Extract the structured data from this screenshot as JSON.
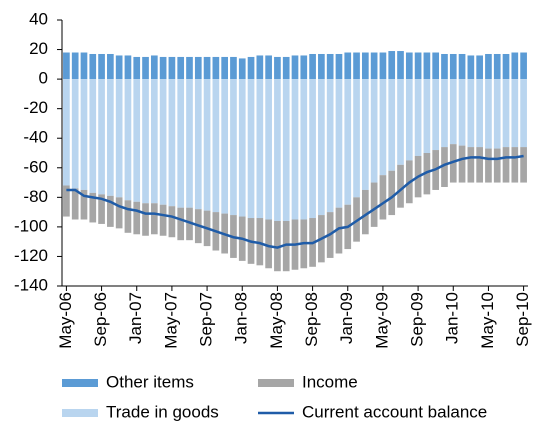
{
  "chart_data": {
    "type": "stacked-bar-line",
    "categories": [
      "May-06",
      null,
      null,
      null,
      "Sep-06",
      null,
      null,
      null,
      "Jan-07",
      null,
      null,
      null,
      "May-07",
      null,
      null,
      null,
      "Sep-07",
      null,
      null,
      null,
      "Jan-08",
      null,
      null,
      null,
      "May-08",
      null,
      null,
      null,
      "Sep-08",
      null,
      null,
      null,
      "Jan-09",
      null,
      null,
      null,
      "May-09",
      null,
      null,
      null,
      "Sep-09",
      null,
      null,
      null,
      "Jan-10",
      null,
      null,
      null,
      "May-10",
      null,
      null,
      null,
      "Sep-10"
    ],
    "series": [
      {
        "name": "Other items",
        "color": "#5b9bd5",
        "kind": "bar",
        "values": [
          18,
          18,
          18,
          17,
          17,
          17,
          16,
          16,
          15,
          15,
          16,
          15,
          15,
          15,
          15,
          15,
          15,
          15,
          15,
          15,
          14,
          15,
          16,
          16,
          15,
          15,
          16,
          16,
          17,
          17,
          17,
          17,
          18,
          18,
          18,
          18,
          18,
          19,
          19,
          18,
          18,
          18,
          18,
          17,
          17,
          17,
          16,
          16,
          17,
          17,
          17,
          18,
          18
        ]
      },
      {
        "name": "Trade in goods",
        "color": "#b9d5ef",
        "kind": "bar",
        "values": [
          -72,
          -74,
          -75,
          -77,
          -78,
          -79,
          -80,
          -82,
          -83,
          -84,
          -84,
          -85,
          -86,
          -87,
          -87,
          -88,
          -89,
          -90,
          -91,
          -92,
          -93,
          -94,
          -94,
          -95,
          -96,
          -96,
          -95,
          -95,
          -94,
          -92,
          -90,
          -87,
          -85,
          -80,
          -75,
          -70,
          -65,
          -62,
          -58,
          -55,
          -52,
          -50,
          -48,
          -46,
          -44,
          -45,
          -46,
          -46,
          -47,
          -47,
          -46,
          -46,
          -46
        ]
      },
      {
        "name": "Income",
        "color": "#a6a6a6",
        "kind": "bar",
        "values": [
          -21,
          -21,
          -20,
          -20,
          -20,
          -21,
          -21,
          -22,
          -22,
          -22,
          -21,
          -21,
          -21,
          -22,
          -22,
          -23,
          -24,
          -26,
          -27,
          -29,
          -30,
          -31,
          -32,
          -33,
          -34,
          -34,
          -34,
          -33,
          -33,
          -32,
          -31,
          -31,
          -30,
          -30,
          -30,
          -30,
          -30,
          -30,
          -29,
          -29,
          -28,
          -28,
          -27,
          -27,
          -26,
          -25,
          -24,
          -24,
          -23,
          -23,
          -24,
          -24,
          -24
        ]
      },
      {
        "name": "Current account balance",
        "color": "#1f5ca8",
        "kind": "line",
        "values": [
          -75,
          -75,
          -79,
          -80,
          -81,
          -83,
          -86,
          -88,
          -89,
          -91,
          -91,
          -92,
          -93,
          -95,
          -97,
          -99,
          -101,
          -103,
          -105,
          -107,
          -108,
          -110,
          -111,
          -113,
          -114,
          -112,
          -112,
          -111,
          -111,
          -108,
          -105,
          -101,
          -100,
          -96,
          -92,
          -88,
          -84,
          -80,
          -75,
          -70,
          -66,
          -63,
          -61,
          -58,
          -56,
          -54,
          -53,
          -53,
          -54,
          -54,
          -53,
          -53,
          -52
        ]
      }
    ],
    "ylim": [
      -140,
      40
    ],
    "yticks": [
      -140,
      -120,
      -100,
      -80,
      -60,
      -40,
      -20,
      0,
      20,
      40
    ],
    "grid": false
  }
}
